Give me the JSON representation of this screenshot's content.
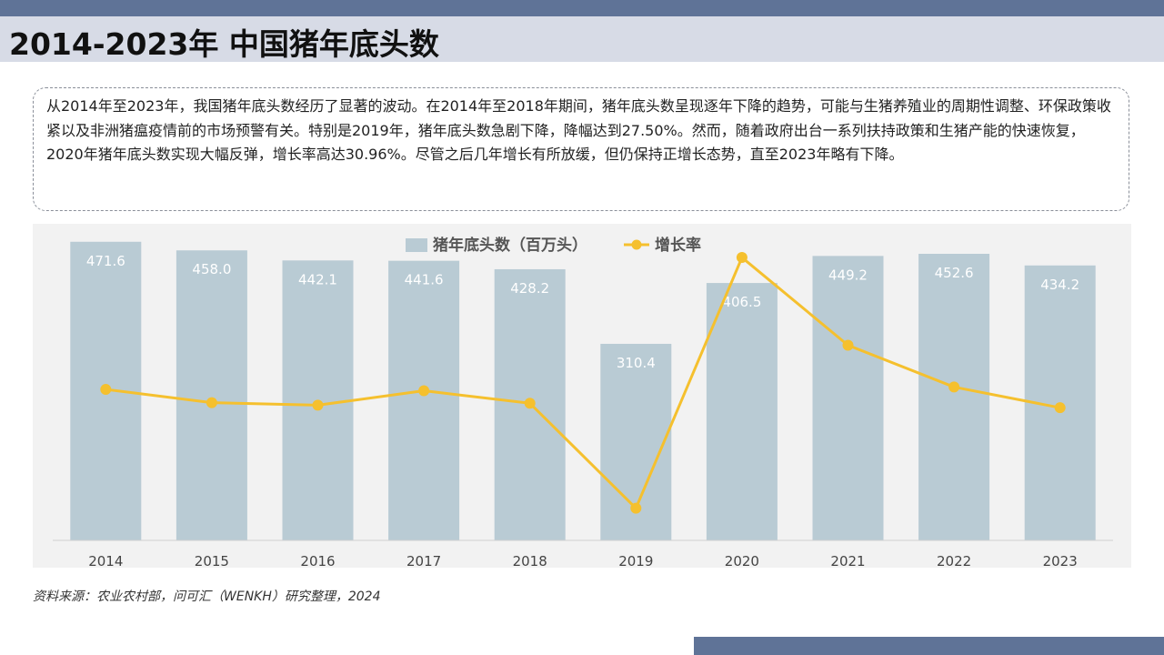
{
  "header": {
    "title": "2014-2023年 中国猪年底头数"
  },
  "summary": {
    "text": "从2014年至2023年，我国猪年底头数经历了显著的波动。在2014年至2018年期间，猪年底头数呈现逐年下降的趋势，可能与生猪养殖业的周期性调整、环保政策收紧以及非洲猪瘟疫情前的市场预警有关。特别是2019年，猪年底头数急剧下降，降幅达到27.50%。然而，随着政府出台一系列扶持政策和生猪产能的快速恢复，2020年猪年底头数实现大幅反弹，增长率高达30.96%。尽管之后几年增长有所放缓，但仍保持正增长态势，直至2023年略有下降。"
  },
  "chart_data": {
    "type": "bar",
    "title": "",
    "categories": [
      "2014",
      "2015",
      "2016",
      "2017",
      "2018",
      "2019",
      "2020",
      "2021",
      "2022",
      "2023"
    ],
    "series": [
      {
        "name": "猪年底头数（百万头）",
        "type": "bar",
        "color": "#b9cbd4",
        "values": [
          471.6,
          458.0,
          442.1,
          441.6,
          428.2,
          310.4,
          406.5,
          449.2,
          452.6,
          434.2
        ],
        "labels": [
          "471.6",
          "458.0",
          "442.1",
          "441.6",
          "428.2",
          "310.4",
          "406.5",
          "449.2",
          "452.6",
          "434.2"
        ]
      },
      {
        "name": "增长率",
        "type": "line",
        "color": "#f5c02e",
        "unit": "%",
        "values": [
          0.2,
          -2.88,
          -3.47,
          -0.11,
          -3.03,
          -27.5,
          30.96,
          10.5,
          0.76,
          -4.07
        ]
      }
    ],
    "ylim_left": [
      0,
      500
    ],
    "ylim_right": [
      -35,
      35
    ],
    "legend_position": "top-center",
    "grid": false
  },
  "source": "资料来源：农业农村部，问可汇（WENKH）研究整理，2024",
  "colors": {
    "accent_band": "#5f7397",
    "title_bg": "#d7dbe6",
    "bar": "#b9cbd4",
    "line": "#f5c02e",
    "panel_bg": "#f2f2f2"
  }
}
